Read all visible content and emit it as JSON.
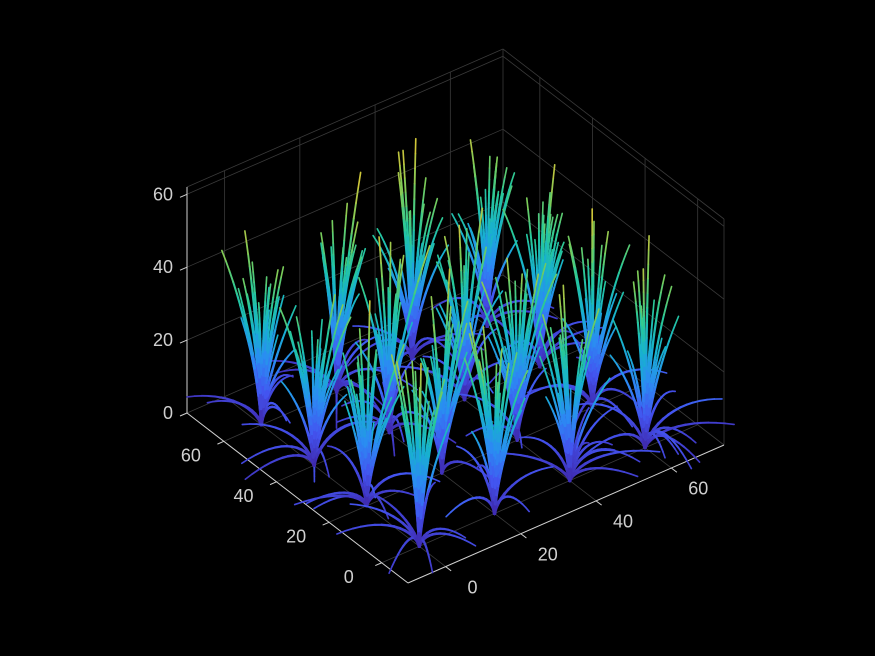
{
  "chart_data": {
    "type": "3d-line",
    "title": "",
    "xlabel": "",
    "ylabel": "",
    "zlabel": "",
    "x_ticks": [
      "0",
      "20",
      "40",
      "60"
    ],
    "y_ticks": [
      "0",
      "20",
      "40",
      "60"
    ],
    "z_ticks": [
      "0",
      "20",
      "40",
      "60"
    ],
    "xlim": [
      -10,
      74
    ],
    "ylim": [
      -10,
      74
    ],
    "zlim": [
      0,
      62
    ],
    "grid": true,
    "background": "#000000",
    "colormap": [
      "#3e26a8",
      "#4354f0",
      "#2b8bf3",
      "#17b1cf",
      "#27c89a",
      "#7acc5a",
      "#c8c33b",
      "#f8dc2c"
    ],
    "clump_positions": [
      [
        0,
        0
      ],
      [
        20,
        0
      ],
      [
        40,
        0
      ],
      [
        60,
        0
      ],
      [
        0,
        20
      ],
      [
        20,
        20
      ],
      [
        40,
        20
      ],
      [
        60,
        20
      ],
      [
        0,
        40
      ],
      [
        20,
        40
      ],
      [
        40,
        40
      ],
      [
        60,
        40
      ],
      [
        0,
        60
      ],
      [
        20,
        60
      ],
      [
        40,
        60
      ],
      [
        60,
        60
      ]
    ],
    "blades_per_clump": 28,
    "max_blade_height": 62
  }
}
